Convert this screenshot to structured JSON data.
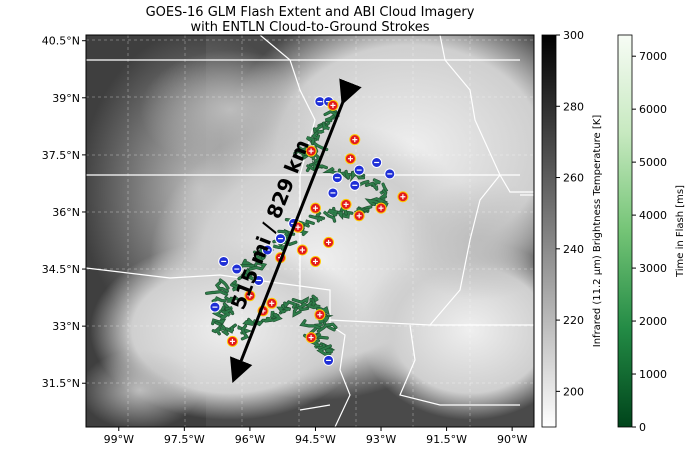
{
  "title_line1": "GOES-16 GLM Flash Extent and ABI Cloud Imagery",
  "title_line2": "with ENTLN Cloud-to-Ground Strokes",
  "map": {
    "lat_ticks": [
      "40.5°N",
      "39°N",
      "37.5°N",
      "36°N",
      "34.5°N",
      "33°N",
      "31.5°N"
    ],
    "lon_ticks": [
      "99°W",
      "97.5°W",
      "96°W",
      "94.5°W",
      "93°W",
      "91.5°W",
      "90°W"
    ],
    "distance_label": "515 mi / 829 km",
    "gridlines": true,
    "strokes": {
      "positive": [
        [
          94.1,
          38.8
        ],
        [
          93.6,
          37.9
        ],
        [
          94.6,
          37.6
        ],
        [
          93.7,
          37.4
        ],
        [
          92.5,
          36.4
        ],
        [
          93.0,
          36.1
        ],
        [
          93.8,
          36.2
        ],
        [
          94.5,
          36.1
        ],
        [
          94.9,
          35.6
        ],
        [
          93.5,
          35.9
        ],
        [
          94.2,
          35.2
        ],
        [
          94.8,
          35.0
        ],
        [
          95.3,
          34.8
        ],
        [
          94.5,
          34.7
        ],
        [
          96.0,
          33.8
        ],
        [
          95.5,
          33.6
        ],
        [
          95.7,
          33.4
        ],
        [
          94.4,
          33.3
        ],
        [
          94.6,
          32.7
        ],
        [
          96.4,
          32.6
        ]
      ],
      "negative": [
        [
          94.4,
          38.9
        ],
        [
          94.2,
          38.9
        ],
        [
          93.1,
          37.3
        ],
        [
          93.5,
          37.1
        ],
        [
          92.8,
          37.0
        ],
        [
          94.0,
          36.9
        ],
        [
          93.6,
          36.7
        ],
        [
          94.1,
          36.5
        ],
        [
          95.0,
          35.7
        ],
        [
          95.6,
          35.0
        ],
        [
          95.3,
          35.3
        ],
        [
          96.6,
          34.7
        ],
        [
          96.3,
          34.5
        ],
        [
          95.8,
          34.2
        ],
        [
          96.8,
          33.5
        ],
        [
          94.2,
          32.1
        ]
      ]
    },
    "flash_track": [
      [
        94.0,
        38.6
      ],
      [
        94.3,
        38.2
      ],
      [
        94.7,
        37.6
      ],
      [
        94.4,
        37.2
      ],
      [
        93.5,
        37.0
      ],
      [
        92.9,
        36.4
      ],
      [
        93.4,
        36.0
      ],
      [
        94.2,
        35.9
      ],
      [
        94.9,
        35.5
      ],
      [
        95.5,
        35.0
      ],
      [
        96.0,
        34.5
      ],
      [
        96.5,
        34.0
      ],
      [
        96.6,
        33.5
      ],
      [
        96.7,
        32.8
      ],
      [
        95.8,
        33.1
      ],
      [
        95.2,
        33.4
      ],
      [
        94.6,
        33.7
      ],
      [
        94.3,
        33.2
      ],
      [
        94.5,
        32.7
      ],
      [
        94.1,
        32.2
      ]
    ],
    "arrow": {
      "from": [
        93.8,
        39.1
      ],
      "to": [
        96.3,
        31.8
      ]
    }
  },
  "colorbar_ir": {
    "label": "Infrared (11.2 µm) Brightness Temperature [K]",
    "ticks": [
      300,
      280,
      260,
      240,
      220,
      200
    ],
    "range": [
      190,
      300
    ],
    "colormap": [
      "#000000",
      "#ffffff"
    ]
  },
  "colorbar_flash": {
    "label": "Time in Flash [ms]",
    "ticks": [
      7000,
      6000,
      5000,
      4000,
      3000,
      2000,
      1000,
      0
    ],
    "range": [
      0,
      7400
    ],
    "colormap": [
      "#00441b",
      "#238b45",
      "#74c476",
      "#c7e9c0",
      "#f7fcf5"
    ]
  },
  "colors": {
    "positive_stroke": "#e31a1c",
    "negative_stroke": "#1f2fd6",
    "flash_track": "#2e7d4a",
    "arrow": "#000000",
    "boundary": "#ffffff",
    "map_bg_dark": "#4a4a4a",
    "map_cloud": "#d9d9d9"
  }
}
